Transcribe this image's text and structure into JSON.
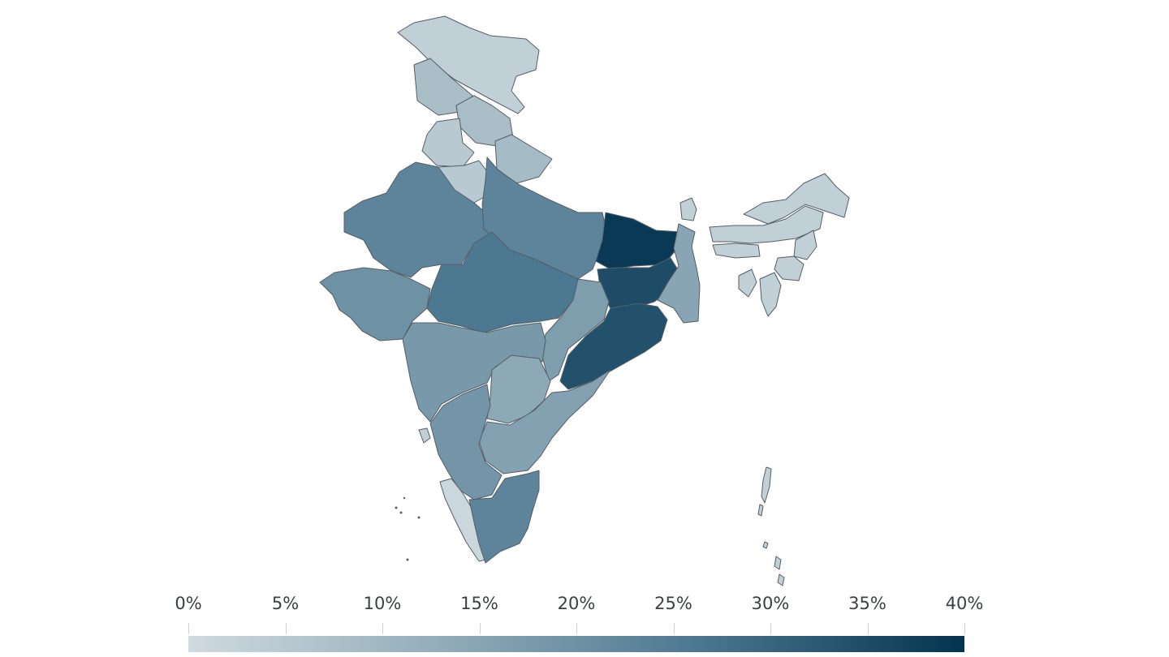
{
  "legend": {
    "ticks": [
      "0%",
      "5%",
      "10%",
      "15%",
      "20%",
      "25%",
      "30%",
      "35%",
      "40%"
    ],
    "min_value": 0,
    "max_value": 40,
    "color_low": "#cfdae0",
    "color_high": "#04344f"
  },
  "regions": [
    {
      "name": "Jammu and Kashmir",
      "value": 3
    },
    {
      "name": "Ladakh",
      "value": 8
    },
    {
      "name": "Himachal Pradesh",
      "value": 8
    },
    {
      "name": "Punjab",
      "value": 5
    },
    {
      "name": "Haryana",
      "value": 5
    },
    {
      "name": "Uttarakhand",
      "value": 9
    },
    {
      "name": "Rajasthan",
      "value": 23
    },
    {
      "name": "Uttar Pradesh",
      "value": 23
    },
    {
      "name": "Bihar",
      "value": 39
    },
    {
      "name": "Gujarat",
      "value": 20
    },
    {
      "name": "Madhya Pradesh",
      "value": 26
    },
    {
      "name": "Jharkhand",
      "value": 35
    },
    {
      "name": "West Bengal",
      "value": 15
    },
    {
      "name": "Chhattisgarh",
      "value": 17
    },
    {
      "name": "Odisha",
      "value": 34
    },
    {
      "name": "Maharashtra",
      "value": 18
    },
    {
      "name": "Telangana",
      "value": 14
    },
    {
      "name": "Andhra Pradesh",
      "value": 16
    },
    {
      "name": "Karnataka",
      "value": 19
    },
    {
      "name": "Goa",
      "value": 3
    },
    {
      "name": "Kerala",
      "value": 1
    },
    {
      "name": "Tamil Nadu",
      "value": 23
    },
    {
      "name": "Sikkim",
      "value": 3
    },
    {
      "name": "Assam",
      "value": 3
    },
    {
      "name": "Arunachal Pradesh",
      "value": 3
    },
    {
      "name": "Meghalaya",
      "value": 3
    },
    {
      "name": "Nagaland",
      "value": 3
    },
    {
      "name": "Manipur",
      "value": 3
    },
    {
      "name": "Mizoram",
      "value": 3
    },
    {
      "name": "Tripura",
      "value": 3
    },
    {
      "name": "Andaman and Nicobar Islands",
      "value": 3
    }
  ]
}
